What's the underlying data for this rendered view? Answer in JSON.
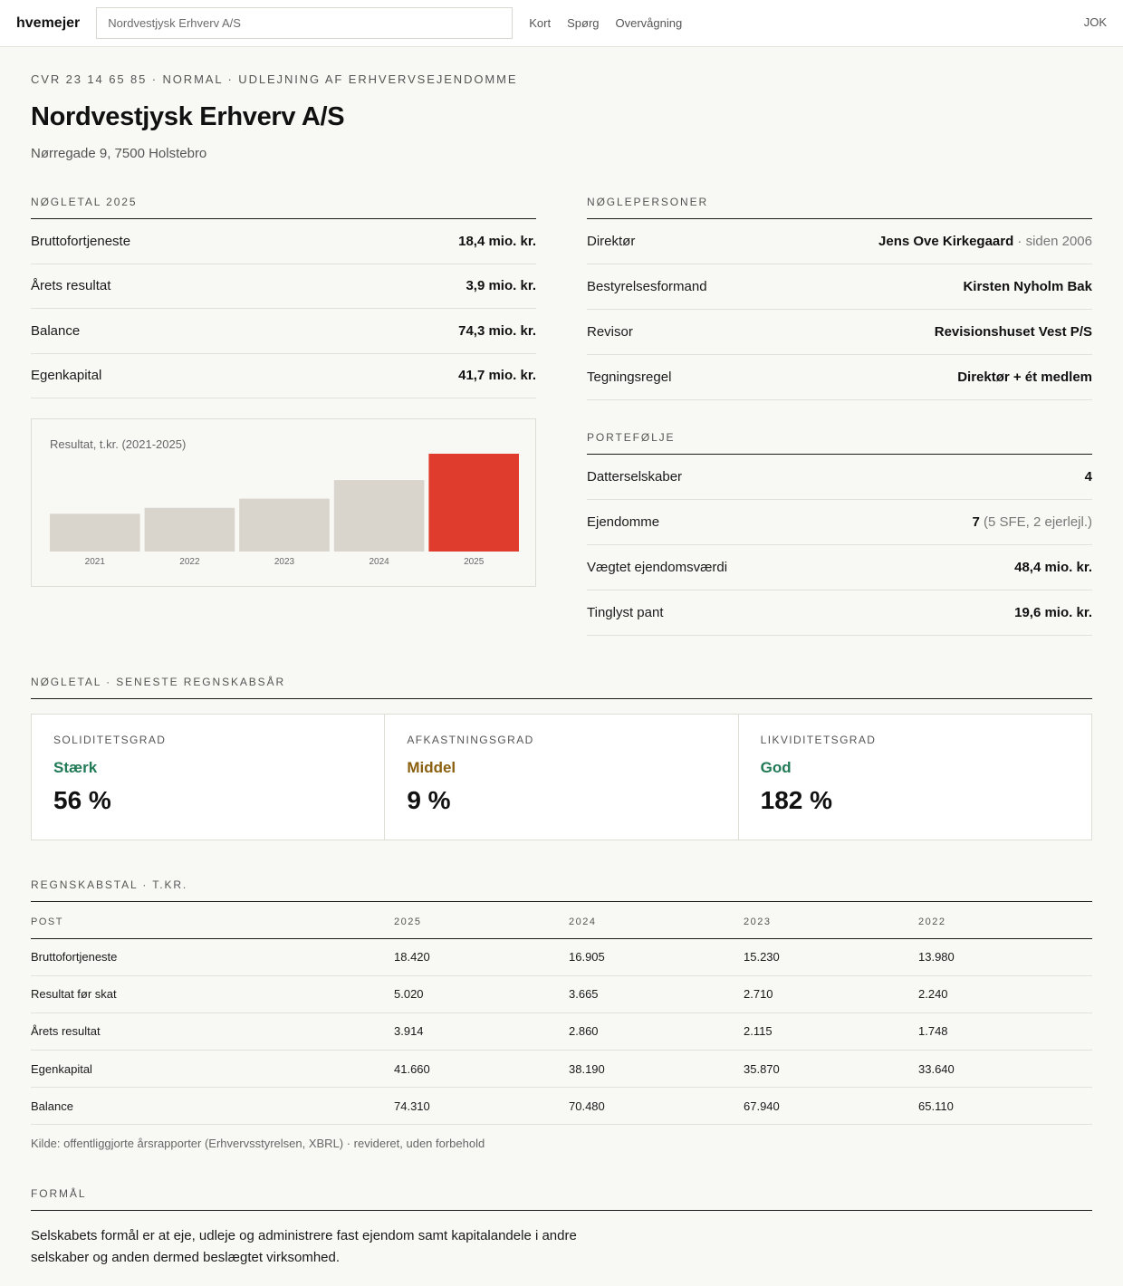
{
  "header": {
    "brand": "hvemejer",
    "search_value": "Nordvestjysk Erhverv A/S",
    "nav": [
      "Kort",
      "Spørg",
      "Overvågning"
    ],
    "user": "JOK"
  },
  "company": {
    "eyebrow": "CVR 23 14 65 85 · NORMAL · UDLEJNING AF ERHVERVSEJENDOMME",
    "name": "Nordvestjysk Erhverv A/S",
    "address": "Nørregade 9, 7500 Holstebro"
  },
  "keyfigures": {
    "title": "NØGLETAL 2025",
    "rows": [
      {
        "label": "Bruttofortjeneste",
        "value": "18,4 mio. kr."
      },
      {
        "label": "Årets resultat",
        "value": "3,9 mio. kr."
      },
      {
        "label": "Balance",
        "value": "74,3 mio. kr."
      },
      {
        "label": "Egenkapital",
        "value": "41,7 mio. kr."
      }
    ]
  },
  "chart_data": {
    "type": "bar",
    "title": "Resultat, t.kr. (2021-2025)",
    "categories": [
      "2021",
      "2022",
      "2023",
      "2024",
      "2025"
    ],
    "values": [
      1510,
      1748,
      2115,
      2860,
      3914
    ],
    "highlight_index": 4,
    "colors": {
      "bar": "#d9d5cc",
      "highlight": "#e03c2d"
    }
  },
  "people": {
    "title": "NØGLEPERSONER",
    "rows": [
      {
        "label": "Direktør",
        "value": "Jens Ove Kirkegaard",
        "extra": " · siden 2006"
      },
      {
        "label": "Bestyrelsesformand",
        "value": "Kirsten Nyholm Bak",
        "extra": ""
      },
      {
        "label": "Revisor",
        "value": "Revisionshuset Vest P/S",
        "extra": ""
      },
      {
        "label": "Tegningsregel",
        "value": "Direktør + ét medlem",
        "extra": ""
      }
    ]
  },
  "portfolio": {
    "title": "PORTEFØLJE",
    "rows": [
      {
        "label": "Datterselskaber",
        "value": "4",
        "extra": ""
      },
      {
        "label": "Ejendomme",
        "value": "7",
        "extra": " (5 SFE, 2 ejerlejl.)"
      },
      {
        "label": "Vægtet ejendomsværdi",
        "value": "48,4 mio. kr.",
        "extra": ""
      },
      {
        "label": "Tinglyst pant",
        "value": "19,6 mio. kr.",
        "extra": ""
      }
    ]
  },
  "ratios": {
    "title": "NØGLETAL · SENESTE REGNSKABSÅR",
    "cards": [
      {
        "label": "SOLIDITETSGRAD",
        "rating": "Stærk",
        "value": "56 %",
        "color": "#1f7a55"
      },
      {
        "label": "AFKASTNINGSGRAD",
        "rating": "Middel",
        "value": "9 %",
        "color": "#8a5f0e"
      },
      {
        "label": "LIKVIDITETSGRAD",
        "rating": "God",
        "value": "182 %",
        "color": "#1f7a55"
      }
    ]
  },
  "accounts": {
    "title": "REGNSKABSTAL · T.KR.",
    "headers": [
      "POST",
      "2025",
      "2024",
      "2023",
      "2022"
    ],
    "rows": [
      [
        "Bruttofortjeneste",
        "18.420",
        "16.905",
        "15.230",
        "13.980"
      ],
      [
        "Resultat før skat",
        "5.020",
        "3.665",
        "2.710",
        "2.240"
      ],
      [
        "Årets resultat",
        "3.914",
        "2.860",
        "2.115",
        "1.748"
      ],
      [
        "Egenkapital",
        "41.660",
        "38.190",
        "35.870",
        "33.640"
      ],
      [
        "Balance",
        "74.310",
        "70.480",
        "67.940",
        "65.110"
      ]
    ],
    "source": "Kilde: offentliggjorte årsrapporter (Erhvervsstyrelsen, XBRL) · revideret, uden forbehold"
  },
  "purpose": {
    "title": "FORMÅL",
    "text": "Selskabets formål er at eje, udleje og administrere fast ejendom samt kapitalandele i andre selskaber og anden dermed beslægtet virksomhed."
  }
}
